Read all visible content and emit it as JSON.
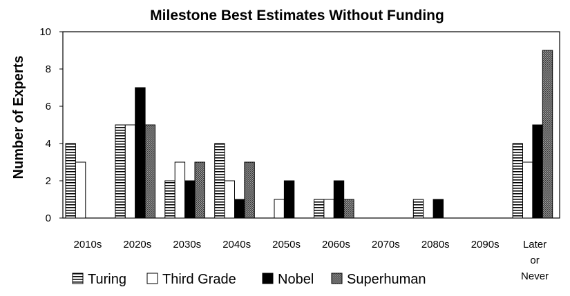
{
  "chart_data": {
    "type": "bar",
    "title": "Milestone Best Estimates Without Funding",
    "xlabel": "",
    "ylabel": "Number of Experts",
    "ylim": [
      0,
      10
    ],
    "yticks": [
      0,
      2,
      4,
      6,
      8,
      10
    ],
    "grid": false,
    "categories": [
      [
        "2010s"
      ],
      [
        "2020s"
      ],
      [
        "2030s"
      ],
      [
        "2040s"
      ],
      [
        "2050s"
      ],
      [
        "2060s"
      ],
      [
        "2070s"
      ],
      [
        "2080s"
      ],
      [
        "2090s"
      ],
      [
        "Later",
        "or",
        "Never"
      ]
    ],
    "series": [
      {
        "name": "Turing",
        "pattern": "hstripes",
        "values": [
          4,
          5,
          2,
          4,
          0,
          1,
          0,
          1,
          0,
          4
        ]
      },
      {
        "name": "Third Grade",
        "pattern": "white",
        "values": [
          3,
          5,
          3,
          2,
          1,
          1,
          0,
          0,
          0,
          3
        ]
      },
      {
        "name": "Nobel",
        "pattern": "black",
        "values": [
          0,
          7,
          2,
          1,
          2,
          2,
          0,
          1,
          0,
          5
        ]
      },
      {
        "name": "Superhuman",
        "pattern": "checker",
        "values": [
          0,
          5,
          3,
          3,
          0,
          1,
          0,
          0,
          0,
          9
        ]
      }
    ],
    "legend_position": "bottom-left"
  }
}
